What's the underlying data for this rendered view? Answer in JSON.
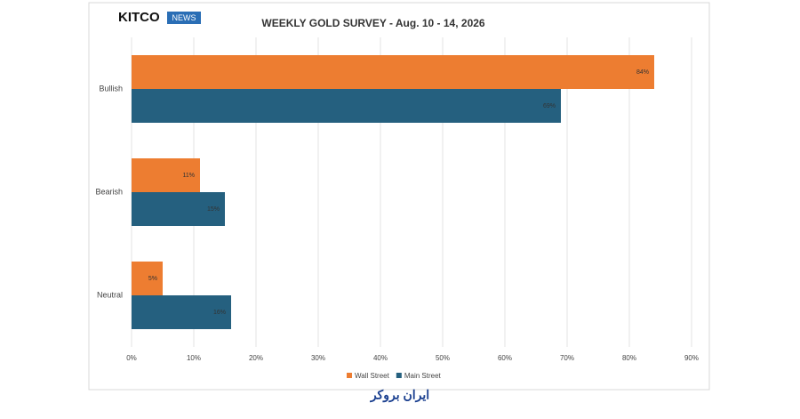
{
  "logo": {
    "brand": "KITCO",
    "badge": "NEWS"
  },
  "watermark": "ایران بروکر",
  "chart_data": {
    "type": "hbar",
    "title": "WEEKLY GOLD SURVEY - Aug. 10 - 14, 2026",
    "categories": [
      "Bullish",
      "Bearish",
      "Neutral"
    ],
    "series": [
      {
        "name": "Wall Street",
        "color": "#ed7d31",
        "values": [
          84,
          11,
          5
        ],
        "value_labels": [
          "84%",
          "11%",
          "5%"
        ]
      },
      {
        "name": "Main Street",
        "color": "#25607f",
        "values": [
          69,
          15,
          16
        ],
        "value_labels": [
          "69%",
          "15%",
          "16%"
        ]
      }
    ],
    "xlim": [
      0,
      90
    ],
    "xticks": [
      {
        "value": 0,
        "label": "0%"
      },
      {
        "value": 10,
        "label": "10%"
      },
      {
        "value": 20,
        "label": "20%"
      },
      {
        "value": 30,
        "label": "30%"
      },
      {
        "value": 40,
        "label": "40%"
      },
      {
        "value": 50,
        "label": "50%"
      },
      {
        "value": 60,
        "label": "60%"
      },
      {
        "value": 70,
        "label": "70%"
      },
      {
        "value": 80,
        "label": "80%"
      },
      {
        "value": 90,
        "label": "90%"
      }
    ],
    "grid": true,
    "legend": "bottom"
  }
}
